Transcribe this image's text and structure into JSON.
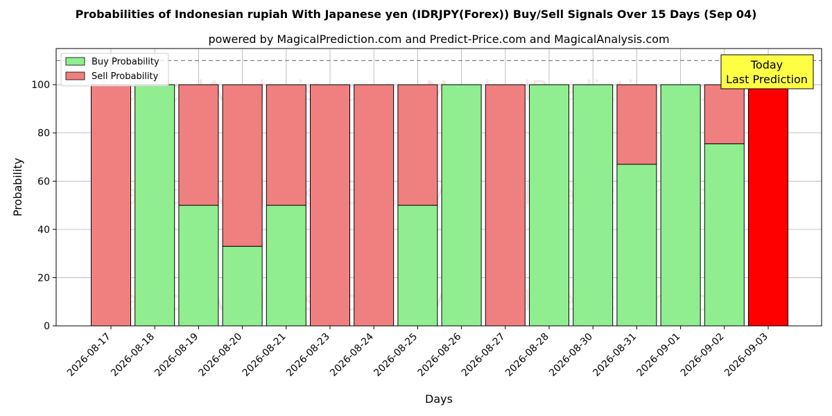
{
  "chart_data": {
    "type": "bar",
    "stacked": true,
    "title": "Probabilities of Indonesian rupiah With Japanese yen (IDRJPY(Forex)) Buy/Sell Signals Over 15 Days (Sep 04)",
    "subtitle": "powered by MagicalPrediction.com and Predict-Price.com and MagicalAnalysis.com",
    "xlabel": "Days",
    "ylabel": "Probability",
    "ylim": [
      0,
      115
    ],
    "yticks": [
      0,
      20,
      40,
      60,
      80,
      100
    ],
    "grid": true,
    "legend_position": "top-left",
    "reference_line": 110,
    "categories": [
      "2026-08-17",
      "2026-08-18",
      "2026-08-19",
      "2026-08-20",
      "2026-08-21",
      "2026-08-23",
      "2026-08-24",
      "2026-08-25",
      "2026-08-26",
      "2026-08-27",
      "2026-08-28",
      "2026-08-30",
      "2026-08-31",
      "2026-09-01",
      "2026-09-02",
      "2026-09-03"
    ],
    "series": [
      {
        "name": "Buy Probability",
        "color": "#90ee90",
        "values": [
          0,
          100,
          50,
          33,
          50,
          0,
          0,
          50,
          100,
          0,
          100,
          100,
          67,
          100,
          75.5,
          0
        ]
      },
      {
        "name": "Sell Probability",
        "color": "#f08080",
        "values": [
          100,
          0,
          50,
          67,
          50,
          100,
          100,
          50,
          0,
          100,
          0,
          0,
          33,
          0,
          24.5,
          100
        ]
      }
    ],
    "highlight": {
      "category": "2026-09-03",
      "color": "#ff0000",
      "label_line1": "Today",
      "label_line2": "Last Prediction",
      "label_bg": "#ffff44"
    },
    "watermarks": [
      "MagicalAnalysis.com",
      "MagicalPrediction.com"
    ]
  }
}
